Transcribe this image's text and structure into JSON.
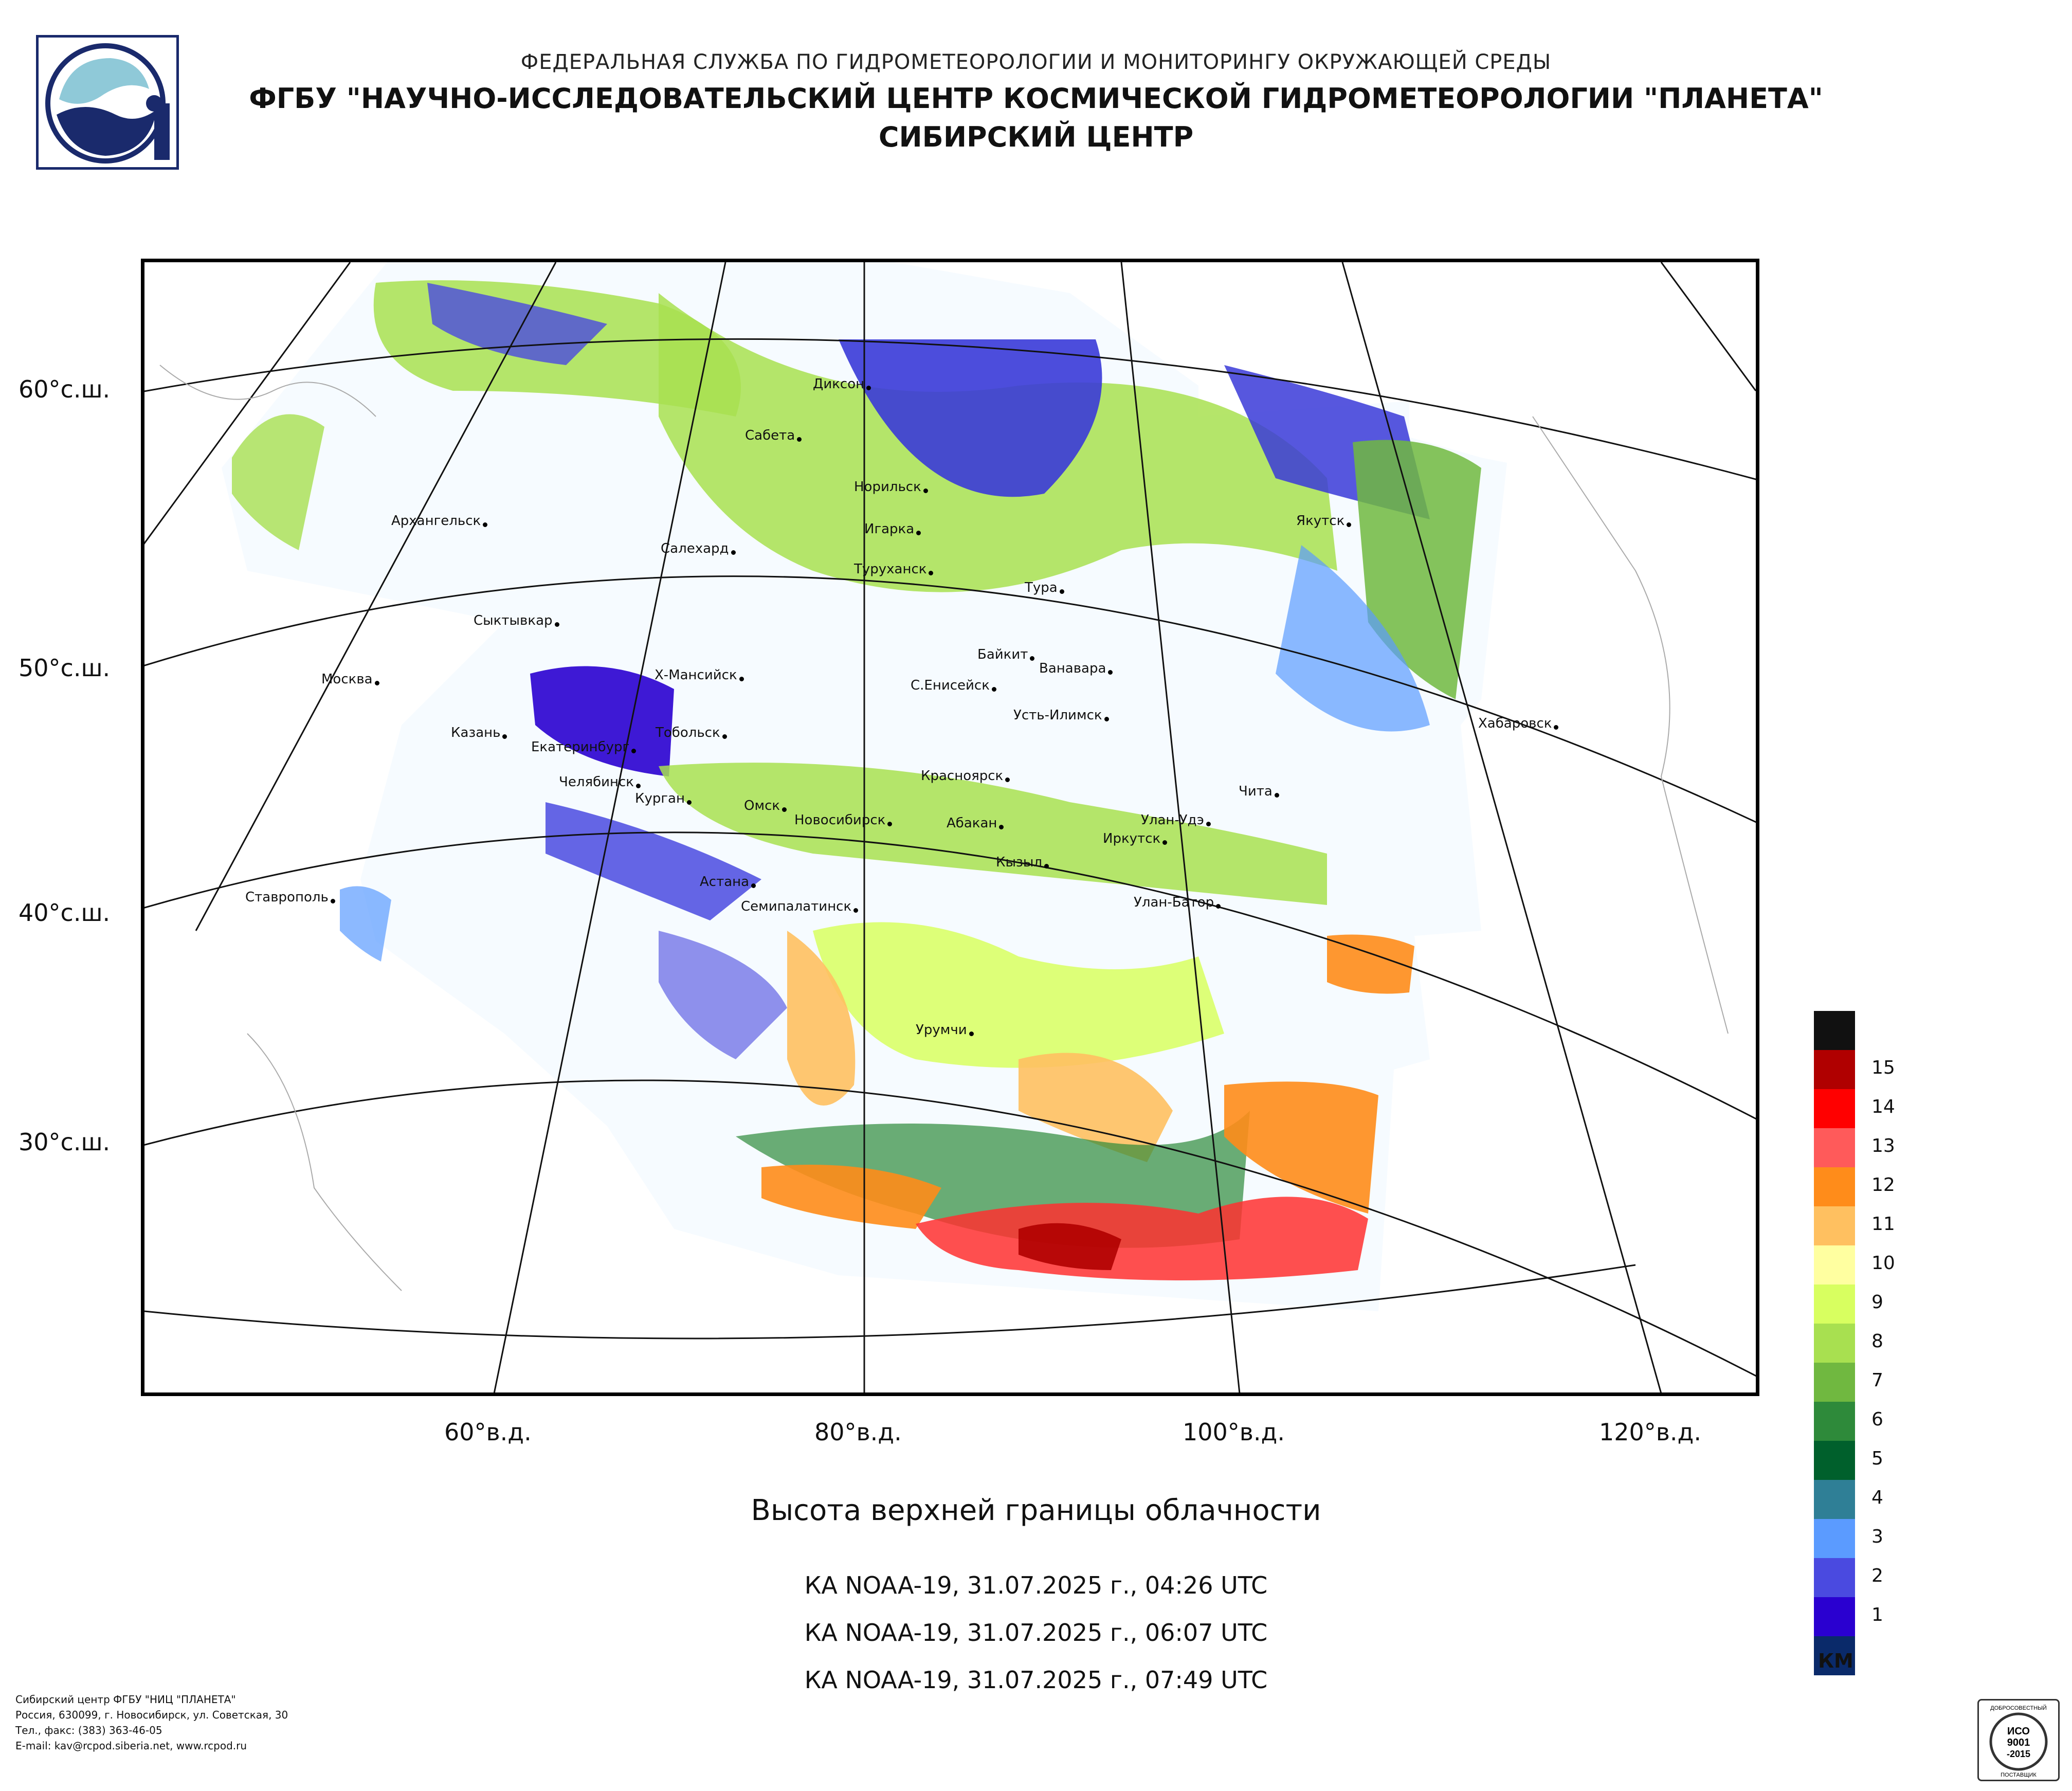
{
  "header": {
    "line1": "ФЕДЕРАЛЬНАЯ СЛУЖБА ПО ГИДРОМЕТЕОРОЛОГИИ И МОНИТОРИНГУ ОКРУЖАЮЩЕЙ СРЕДЫ",
    "line2": "ФГБУ \"НАУЧНО-ИССЛЕДОВАТЕЛЬСКИЙ ЦЕНТР КОСМИЧЕСКОЙ ГИДРОМЕТЕОРОЛОГИИ \"ПЛАНЕТА\"",
    "line3": "СИБИРСКИЙ ЦЕНТР"
  },
  "map": {
    "lat_labels": [
      "60°с.ш.",
      "50°с.ш.",
      "40°с.ш.",
      "30°с.ш."
    ],
    "lon_labels": [
      "60°в.д.",
      "80°в.д.",
      "100°в.д.",
      "120°в.д."
    ],
    "cities": [
      "Диксон",
      "Сабета",
      "Норильск",
      "Игарка",
      "Салехард",
      "Туруханск",
      "Тура",
      "Архангельск",
      "Якутск",
      "Сыктывкар",
      "Байкит",
      "Ванавара",
      "Х-Мансийск",
      "Москва",
      "С.Енисейск",
      "Усть-Илимск",
      "Хабаровск",
      "Казань",
      "Тобольск",
      "Екатеринбург",
      "Красноярск",
      "Челябинск",
      "Чита",
      "Омск",
      "Курган",
      "Новосибирск",
      "Абакан",
      "Улан-Удэ",
      "Иркутск",
      "Кызыл",
      "Астана",
      "Ставрополь",
      "Семипалатинск",
      "Улан-Батор",
      "Урумчи"
    ]
  },
  "title": "Высота верхней границы облачности",
  "passes": [
    "КА NOAA-19, 31.07.2025 г., 04:26 UTC",
    "КА NOAA-19, 31.07.2025 г., 06:07 UTC",
    "КА NOAA-19, 31.07.2025 г., 07:49 UTC"
  ],
  "legend": {
    "unit": "КМ",
    "items": [
      {
        "label": "",
        "color": "#111111"
      },
      {
        "label": "15",
        "color": "#b00000"
      },
      {
        "label": "14",
        "color": "#ff0000"
      },
      {
        "label": "13",
        "color": "#ff5a5a"
      },
      {
        "label": "12",
        "color": "#ff8c1a"
      },
      {
        "label": "11",
        "color": "#ffc060"
      },
      {
        "label": "10",
        "color": "#ffffa0"
      },
      {
        "label": "9",
        "color": "#d8ff60"
      },
      {
        "label": "8",
        "color": "#a8e050"
      },
      {
        "label": "7",
        "color": "#70b840"
      },
      {
        "label": "6",
        "color": "#2e8a3a"
      },
      {
        "label": "5",
        "color": "#00602c"
      },
      {
        "label": "4",
        "color": "#2f7f96"
      },
      {
        "label": "3",
        "color": "#5b9bff"
      },
      {
        "label": "2",
        "color": "#4a4ae0"
      },
      {
        "label": "1",
        "color": "#2a00d0"
      },
      {
        "label": "",
        "color": "#0a2a6a"
      }
    ]
  },
  "footer": {
    "l1": "Сибирский центр ФГБУ \"НИЦ \"ПЛАНЕТА\"",
    "l2": "Россия, 630099, г. Новосибирск, ул. Советская, 30",
    "l3": "Тел., факс: (383) 363-46-05",
    "l4": "E-mail: kav@rcpod.siberia.net, www.rcpod.ru"
  },
  "iso_badge": {
    "top": "ДОБРОСОВЕСТНЫЙ",
    "l1": "ИСО",
    "l2": "9001",
    "l3": "-2015",
    "bottom": "ПОСТАВЩИК"
  }
}
